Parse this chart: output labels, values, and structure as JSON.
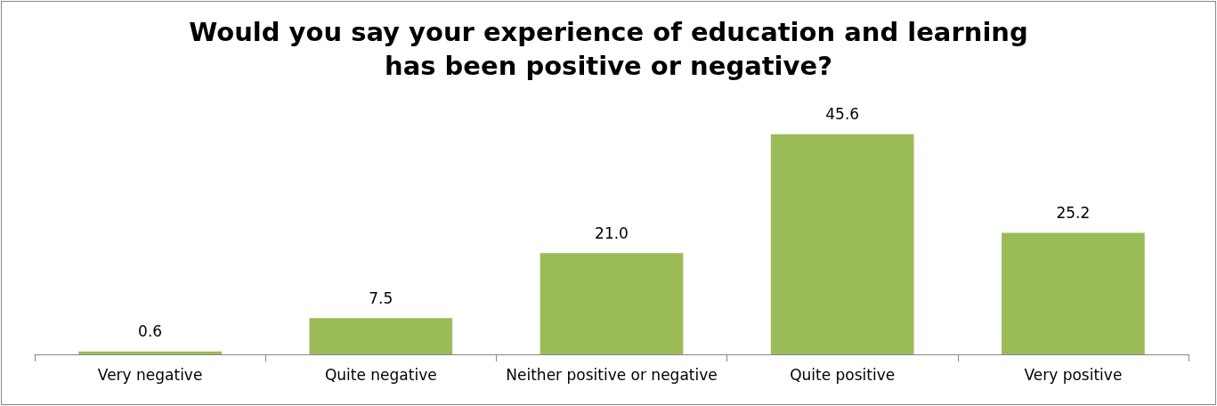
{
  "chart_data": {
    "type": "bar",
    "title": "Would you say your experience of education and learning\nhas been positive or negative?",
    "categories": [
      "Very negative",
      "Quite negative",
      "Neither positive or negative",
      "Quite positive",
      "Very positive"
    ],
    "values": [
      0.6,
      7.5,
      21.0,
      45.6,
      25.2
    ],
    "value_labels": [
      "0.6",
      "7.5",
      "21.0",
      "45.6",
      "25.2"
    ],
    "color": "#9bbb59"
  }
}
